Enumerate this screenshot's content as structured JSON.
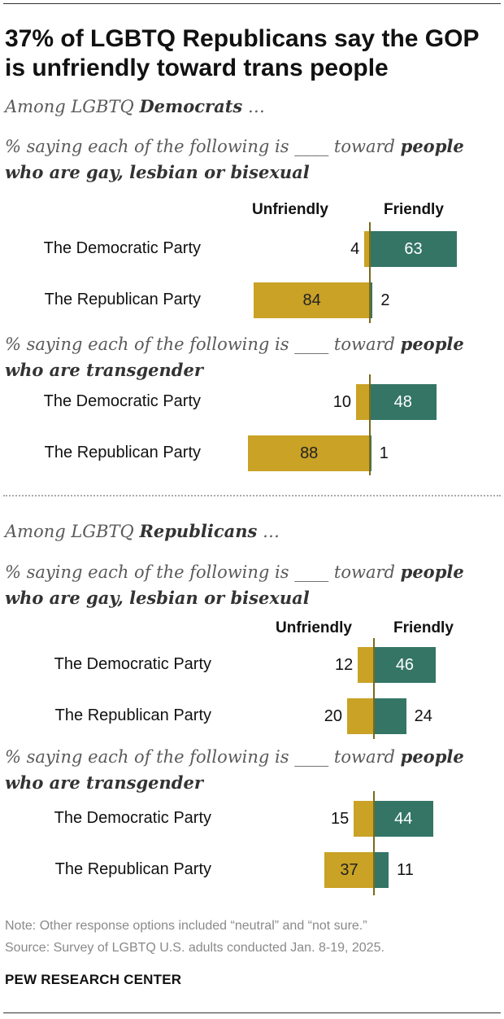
{
  "title": "37% of LGBTQ Republicans say the GOP is unfriendly toward trans people",
  "col_unfriendly": "Unfriendly",
  "col_friendly": "Friendly",
  "groups": [
    {
      "prefix": "Among LGBTQ",
      "name": "Democrats",
      "suffix": "…",
      "panels": [
        {
          "q_pre": "% saying each of the following is ____ toward",
          "q_bold": "people who are gay, lesbian or bisexual"
        },
        {
          "q_pre": "% saying each of the following is ____ toward",
          "q_bold": "people who are transgender"
        }
      ]
    },
    {
      "prefix": "Among LGBTQ",
      "name": "Republicans",
      "suffix": "…",
      "panels": [
        {
          "q_pre": "% saying each of the following is ____ toward",
          "q_bold": "people who are gay, lesbian or bisexual"
        },
        {
          "q_pre": "% saying each of the following is ____ toward",
          "q_bold": "people who are transgender"
        }
      ]
    }
  ],
  "chart_data": [
    {
      "type": "bar",
      "title": "Among LGBTQ Democrats: % saying each is ____ toward people who are gay, lesbian or bisexual",
      "categories": [
        "The Democratic Party",
        "The Republican Party"
      ],
      "series": [
        {
          "name": "Unfriendly",
          "values": [
            4,
            84
          ]
        },
        {
          "name": "Friendly",
          "values": [
            63,
            2
          ]
        }
      ]
    },
    {
      "type": "bar",
      "title": "Among LGBTQ Democrats: % saying each is ____ toward people who are transgender",
      "categories": [
        "The Democratic Party",
        "The Republican Party"
      ],
      "series": [
        {
          "name": "Unfriendly",
          "values": [
            10,
            88
          ]
        },
        {
          "name": "Friendly",
          "values": [
            48,
            1
          ]
        }
      ]
    },
    {
      "type": "bar",
      "title": "Among LGBTQ Republicans: % saying each is ____ toward people who are gay, lesbian or bisexual",
      "categories": [
        "The Democratic Party",
        "The Republican Party"
      ],
      "series": [
        {
          "name": "Unfriendly",
          "values": [
            12,
            20
          ]
        },
        {
          "name": "Friendly",
          "values": [
            46,
            24
          ]
        }
      ]
    },
    {
      "type": "bar",
      "title": "Among LGBTQ Republicans: % saying each is ____ toward people who are transgender",
      "categories": [
        "The Democratic Party",
        "The Republican Party"
      ],
      "series": [
        {
          "name": "Unfriendly",
          "values": [
            15,
            37
          ]
        },
        {
          "name": "Friendly",
          "values": [
            44,
            11
          ]
        }
      ]
    }
  ],
  "note": "Note: Other response options included “neutral” and “not sure.”",
  "source": "Source: Survey of LGBTQ U.S. adults conducted Jan. 8-19, 2025.",
  "org": "PEW RESEARCH CENTER"
}
